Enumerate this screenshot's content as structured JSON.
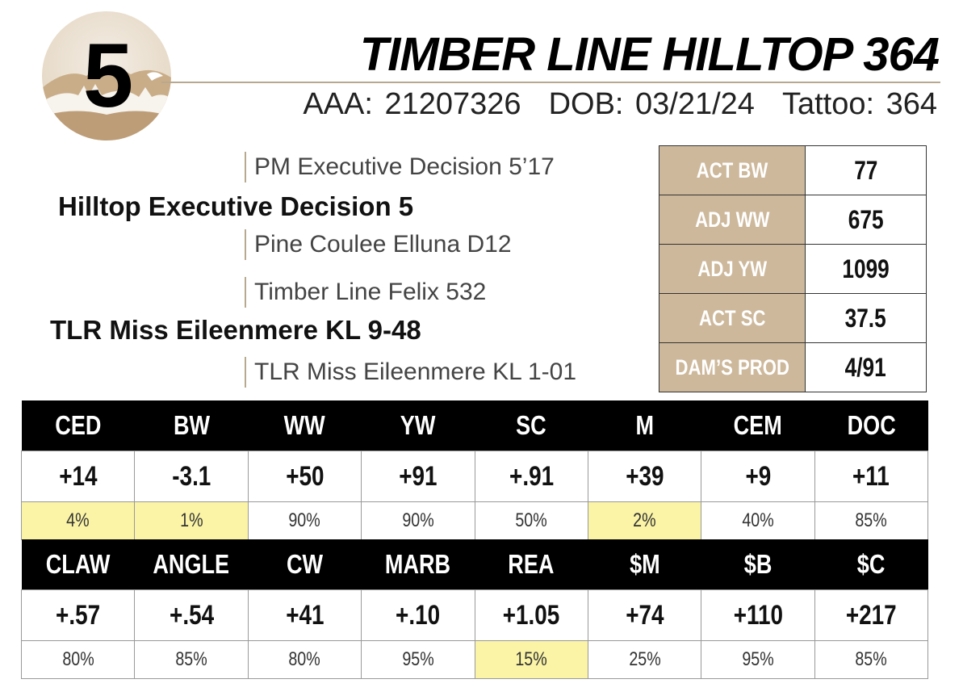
{
  "lot": {
    "number": "5"
  },
  "animal": {
    "name": "TIMBER LINE HILLTOP 364",
    "aaa": "AAA: 21207326",
    "dob": "DOB: 03/21/24",
    "tattoo": "Tattoo: 364"
  },
  "pedigree": {
    "sire_sire": "PM Executive Decision 5’17",
    "sire": "Hilltop Executive Decision 5",
    "sire_dam": "Pine Coulee Elluna D12",
    "dam_sire": "Timber Line Felix 532",
    "dam": "TLR Miss Eileenmere KL 9-48",
    "dam_dam": "TLR Miss Eileenmere KL 1-01"
  },
  "stats": [
    {
      "label": "ACT BW",
      "value": "77"
    },
    {
      "label": "ADJ WW",
      "value": "675"
    },
    {
      "label": "ADJ YW",
      "value": "1099"
    },
    {
      "label": "ACT SC",
      "value": "37.5"
    },
    {
      "label": "DAM’S PROD",
      "value": "4/91"
    }
  ],
  "epd_rows": [
    {
      "headers": [
        "CED",
        "BW",
        "WW",
        "YW",
        "SC",
        "M",
        "CEM",
        "DOC"
      ],
      "values": [
        "+14",
        "-3.1",
        "+50",
        "+91",
        "+.91",
        "+39",
        "+9",
        "+11"
      ],
      "percentiles": [
        "4%",
        "1%",
        "90%",
        "90%",
        "50%",
        "2%",
        "40%",
        "85%"
      ],
      "highlighted": [
        true,
        true,
        false,
        false,
        false,
        true,
        false,
        false
      ]
    },
    {
      "headers": [
        "CLAW",
        "ANGLE",
        "CW",
        "MARB",
        "REA",
        "$M",
        "$B",
        "$C"
      ],
      "values": [
        "+.57",
        "+.54",
        "+41",
        "+.10",
        "+1.05",
        "+74",
        "+110",
        "+217"
      ],
      "percentiles": [
        "80%",
        "85%",
        "80%",
        "95%",
        "15%",
        "25%",
        "95%",
        "85%"
      ],
      "highlighted": [
        false,
        false,
        false,
        false,
        true,
        false,
        false,
        false
      ]
    }
  ],
  "colors": {
    "label_bg": "#cdb89b",
    "highlight": "#fbf4a6",
    "header_bg": "#000000"
  }
}
